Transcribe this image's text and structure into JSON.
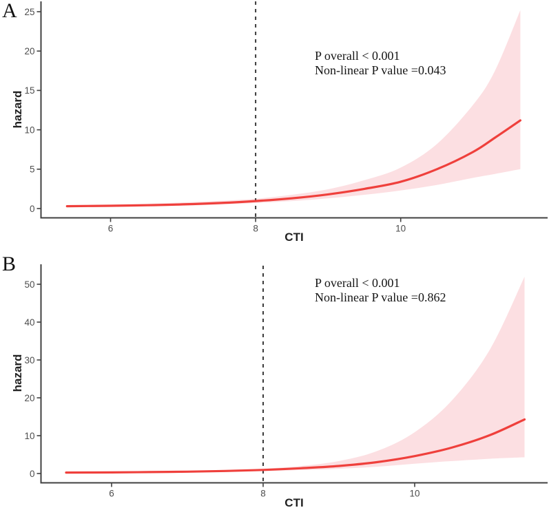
{
  "figure": {
    "background": "#ffffff",
    "colors": {
      "curve": "#ef403c",
      "ribbon": "#fcdfe2",
      "reference_line": "#3a3a3a",
      "axis_line": "#404040",
      "tick_label": "#4d4d4d",
      "axis_title": "#222222",
      "annotation_text": "#151515"
    }
  },
  "chart_data": [
    {
      "type": "line",
      "panel_label": "A",
      "xlabel": "CTI",
      "ylabel": "hazard",
      "annotations": [
        "P overall < 0.001",
        "Non-linear P value =0.043"
      ],
      "reference_line_x": 8,
      "x_ticks": [
        6,
        8,
        10
      ],
      "y_ticks": [
        0,
        5,
        10,
        15,
        20,
        25
      ],
      "xlim": [
        5.3,
        11.9
      ],
      "ylim": [
        0,
        26.3
      ],
      "legend": "none",
      "grid": false,
      "x": [
        5.4,
        6.0,
        6.5,
        7.0,
        7.5,
        8.0,
        8.5,
        9.0,
        9.5,
        10.0,
        10.5,
        11.0,
        11.3,
        11.65
      ],
      "series": [
        {
          "name": "estimate",
          "values": [
            0.3,
            0.35,
            0.42,
            0.53,
            0.7,
            0.95,
            1.3,
            1.8,
            2.5,
            3.4,
            5.0,
            7.2,
            9.0,
            11.2
          ]
        },
        {
          "name": "upper_ci",
          "values": [
            0.45,
            0.52,
            0.62,
            0.78,
            0.98,
            1.25,
            1.75,
            2.45,
            3.6,
            5.2,
            8.2,
            13.2,
            17.5,
            25.2
          ]
        },
        {
          "name": "lower_ci",
          "values": [
            0.18,
            0.22,
            0.28,
            0.36,
            0.5,
            0.7,
            0.95,
            1.3,
            1.75,
            2.3,
            3.0,
            3.9,
            4.4,
            5.0
          ]
        }
      ]
    },
    {
      "type": "line",
      "panel_label": "B",
      "xlabel": "CTI",
      "ylabel": "hazard",
      "annotations": [
        "P overall < 0.001",
        "Non-linear P value =0.862"
      ],
      "reference_line_x": 8,
      "x_ticks": [
        6,
        8,
        10
      ],
      "y_ticks": [
        0,
        10,
        20,
        30,
        40,
        50
      ],
      "xlim": [
        5.3,
        11.8
      ],
      "ylim": [
        0,
        52.5
      ],
      "legend": "none",
      "grid": false,
      "x": [
        5.4,
        6.0,
        6.5,
        7.0,
        7.5,
        8.0,
        8.5,
        9.0,
        9.5,
        10.0,
        10.5,
        11.0,
        11.45
      ],
      "series": [
        {
          "name": "estimate",
          "values": [
            0.25,
            0.3,
            0.38,
            0.5,
            0.68,
            0.95,
            1.4,
            2.0,
            3.0,
            4.6,
            6.9,
            10.2,
            14.3
          ]
        },
        {
          "name": "upper_ci",
          "values": [
            0.4,
            0.46,
            0.56,
            0.72,
            0.96,
            1.3,
            2.0,
            3.3,
            5.9,
            10.9,
            19.5,
            33.0,
            52.0
          ]
        },
        {
          "name": "lower_ci",
          "values": [
            0.15,
            0.19,
            0.25,
            0.33,
            0.46,
            0.65,
            0.9,
            1.25,
            1.8,
            2.6,
            3.3,
            3.9,
            4.3
          ]
        }
      ]
    }
  ]
}
